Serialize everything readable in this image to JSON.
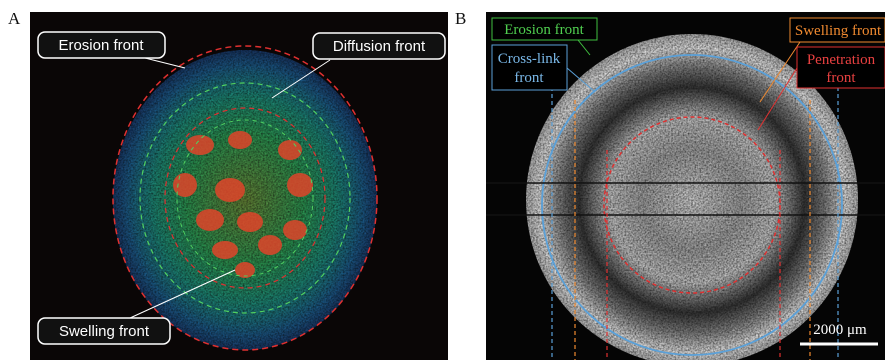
{
  "panels": [
    {
      "label": "A",
      "annotations": [
        {
          "lines": [
            "Erosion front"
          ]
        },
        {
          "lines": [
            "Diffusion front"
          ]
        },
        {
          "lines": [
            "Swelling front"
          ]
        }
      ]
    },
    {
      "label": "B",
      "annotations": [
        {
          "lines": [
            "Erosion front"
          ]
        },
        {
          "lines": [
            "Cross-link",
            "front"
          ]
        },
        {
          "lines": [
            "Swelling front"
          ]
        },
        {
          "lines": [
            "Penetration",
            "front"
          ]
        }
      ],
      "scale_bar": "2000 μm"
    }
  ]
}
